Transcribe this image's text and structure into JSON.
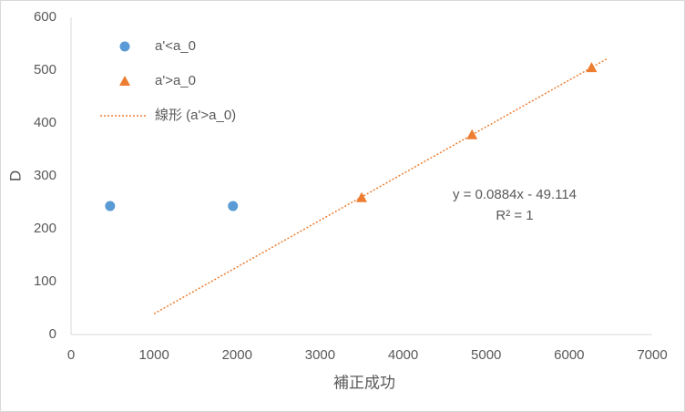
{
  "chart_data": {
    "type": "scatter",
    "x_label": "補正成功",
    "y_label": "D",
    "xlim": [
      0,
      7000
    ],
    "xticks": [
      0,
      1000,
      2000,
      3000,
      4000,
      5000,
      6000,
      7000
    ],
    "ylim": [
      0,
      600
    ],
    "yticks": [
      0,
      100,
      200,
      300,
      400,
      500,
      600
    ],
    "grid": false,
    "legend": "upper left",
    "series": [
      {
        "name": "a'<a_0",
        "color": "#5b9bd5",
        "marker": "circle",
        "x": [
          470,
          1950
        ],
        "values": [
          243,
          243
        ]
      },
      {
        "name": "a'>a_0",
        "color": "#ed7d31",
        "marker": "triangle",
        "x": [
          3500,
          4830,
          6270
        ],
        "values": [
          259,
          378,
          505
        ]
      },
      {
        "name": "線形 (a'>a_0)",
        "color": "#ed7d31",
        "marker": "dotted-line",
        "x": [
          1000,
          6450
        ],
        "values": [
          39.3,
          521
        ]
      }
    ],
    "annotations": [
      "y = 0.0884x - 49.114",
      "R² = 1"
    ]
  }
}
